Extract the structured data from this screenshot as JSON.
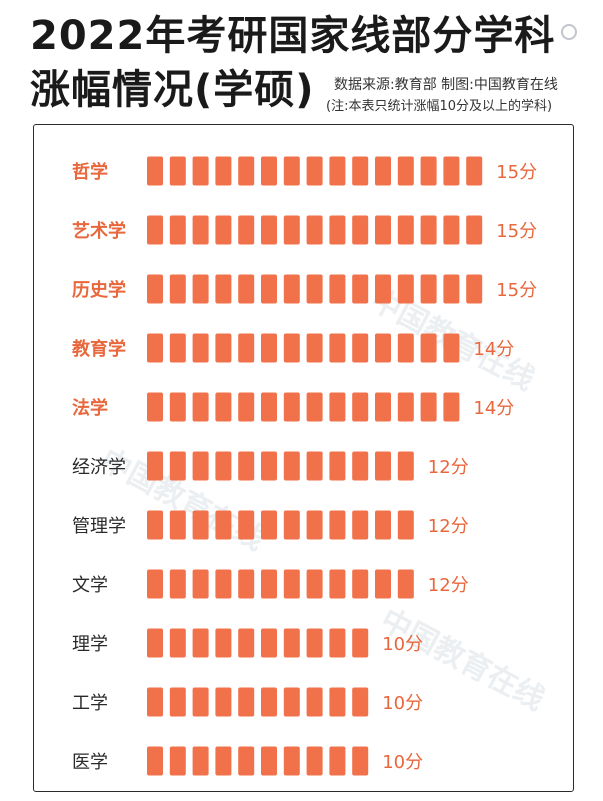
{
  "title_line1": "2022年考研国家线部分学科",
  "title_line2": "涨幅情况(学硕)",
  "source_text": "数据来源:教育部   制图:中国教育在线",
  "note_text": "(注:本表只统计涨幅10分及以上的学科)",
  "watermark": "中国教育在线",
  "colors": {
    "bar": "#f0714a",
    "highlight_label": "#e8673d",
    "label": "#2a2a2a",
    "value": "#e8673d"
  },
  "chart_data": {
    "type": "bar",
    "orientation": "horizontal",
    "unit": "分",
    "categories": [
      "哲学",
      "艺术学",
      "历史学",
      "教育学",
      "法学",
      "经济学",
      "管理学",
      "文学",
      "理学",
      "工学",
      "医学"
    ],
    "values": [
      15,
      15,
      15,
      14,
      14,
      12,
      12,
      12,
      10,
      10,
      10
    ],
    "value_labels": [
      "15分",
      "15分",
      "15分",
      "14分",
      "14分",
      "12分",
      "12分",
      "12分",
      "10分",
      "10分",
      "10分"
    ],
    "highlighted": [
      true,
      true,
      true,
      true,
      true,
      false,
      false,
      false,
      false,
      false,
      false
    ]
  }
}
